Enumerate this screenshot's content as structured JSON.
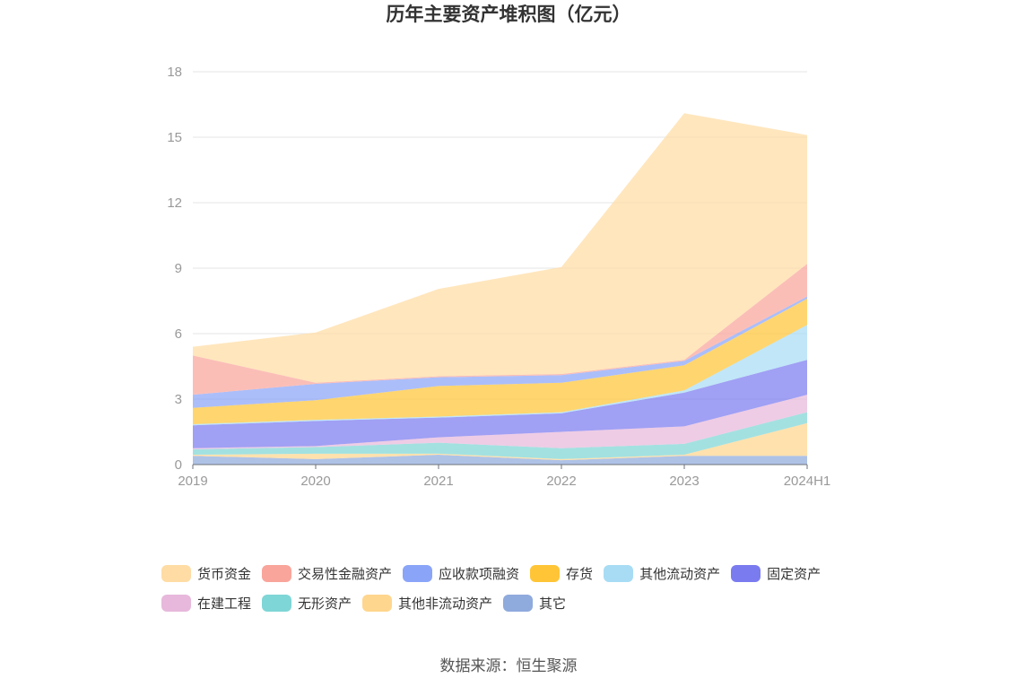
{
  "chart_data": {
    "type": "area",
    "title": "历年主要资产堆积图（亿元）",
    "source": "数据来源：恒生聚源",
    "stacked": true,
    "categories": [
      "2019",
      "2020",
      "2021",
      "2022",
      "2023",
      "2024H1"
    ],
    "ylim": [
      0,
      18
    ],
    "yticks": [
      0,
      3,
      6,
      9,
      12,
      15,
      18
    ],
    "grid": true,
    "legend_position": "bottom",
    "series": [
      {
        "name": "其它",
        "color": "#8faadc",
        "values": [
          0.4,
          0.25,
          0.45,
          0.2,
          0.4,
          0.4
        ]
      },
      {
        "name": "其他非流动资产",
        "color": "#ffd68e",
        "values": [
          0.05,
          0.25,
          0.05,
          0.05,
          0.05,
          1.5
        ]
      },
      {
        "name": "无形资产",
        "color": "#7fd6d6",
        "values": [
          0.25,
          0.3,
          0.5,
          0.5,
          0.5,
          0.5
        ]
      },
      {
        "name": "在建工程",
        "color": "#e7b8db",
        "values": [
          0.05,
          0.05,
          0.25,
          0.75,
          0.8,
          0.8
        ]
      },
      {
        "name": "固定资产",
        "color": "#7b7bf0",
        "values": [
          1.05,
          1.15,
          0.9,
          0.85,
          1.55,
          1.6
        ]
      },
      {
        "name": "其他流动资产",
        "color": "#a8dcf5",
        "values": [
          0.05,
          0.05,
          0.05,
          0.05,
          0.1,
          1.6
        ]
      },
      {
        "name": "存货",
        "color": "#ffc537",
        "values": [
          0.75,
          0.9,
          1.4,
          1.35,
          1.15,
          1.2
        ]
      },
      {
        "name": "应收款项融资",
        "color": "#8aa5f8",
        "values": [
          0.6,
          0.75,
          0.4,
          0.35,
          0.2,
          0.1
        ]
      },
      {
        "name": "交易性金融资产",
        "color": "#f9a59b",
        "values": [
          1.8,
          0.05,
          0.05,
          0.05,
          0.05,
          1.5
        ]
      },
      {
        "name": "货币资金",
        "color": "#ffdca4",
        "values": [
          0.4,
          2.3,
          4.0,
          4.9,
          11.3,
          5.9
        ]
      }
    ],
    "legend_order": [
      "货币资金",
      "交易性金融资产",
      "应收款项融资",
      "存货",
      "其他流动资产",
      "固定资产",
      "在建工程",
      "无形资产",
      "其他非流动资产",
      "其它"
    ]
  }
}
